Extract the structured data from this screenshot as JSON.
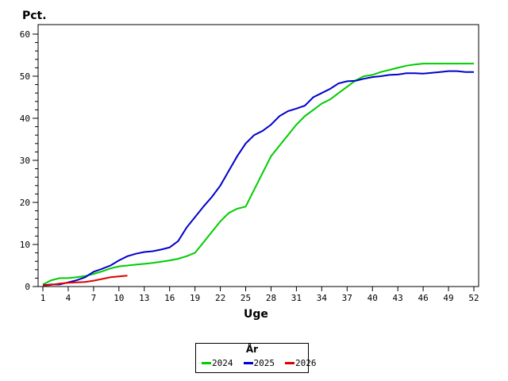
{
  "labels": {
    "y_axis_title": "Pct.",
    "x_axis_title": "Uge"
  },
  "chart_data": {
    "type": "line",
    "title": "",
    "ylabel": "Pct.",
    "xlabel": "Uge",
    "ylim": [
      0,
      60
    ],
    "xlim": [
      1,
      52
    ],
    "grid": "off",
    "y_tick_labels": [
      0,
      10,
      20,
      30,
      40,
      50,
      60
    ],
    "y_minor_step": 2,
    "x_tick_labels": [
      1,
      4,
      7,
      10,
      13,
      16,
      19,
      22,
      25,
      28,
      31,
      34,
      37,
      40,
      43,
      46,
      49,
      52
    ],
    "legend": {
      "title": "År",
      "position": "bottom-center",
      "entries": [
        "2024",
        "2025",
        "2026"
      ]
    },
    "series": [
      {
        "name": "2024",
        "color": "#00CC00",
        "start_week": 1,
        "values": [
          0.5,
          1.5,
          2,
          2,
          2.2,
          2.5,
          3,
          3.6,
          4.3,
          4.8,
          5,
          5.2,
          5.4,
          5.6,
          5.9,
          6.2,
          6.6,
          7.2,
          8,
          10.5,
          13,
          15.5,
          17.5,
          18.5,
          19,
          23,
          27,
          31,
          33.5,
          36,
          38.5,
          40.5,
          42,
          43.5,
          44.5,
          46,
          47.5,
          49,
          50,
          50.3,
          51,
          51.5,
          52,
          52.5,
          52.8,
          53,
          53,
          53,
          53,
          53,
          53,
          53
        ]
      },
      {
        "name": "2025",
        "color": "#0000CC",
        "start_week": 1,
        "values": [
          0.3,
          0.5,
          0.5,
          1,
          1.5,
          2.2,
          3.5,
          4.2,
          5,
          6.2,
          7.2,
          7.8,
          8.2,
          8.4,
          8.8,
          9.3,
          10.8,
          14,
          16.5,
          19,
          21.3,
          24,
          27.5,
          31,
          34,
          36,
          37,
          38.5,
          40.5,
          41.7,
          42.3,
          43,
          45,
          46,
          47,
          48.3,
          48.8,
          48.9,
          49.4,
          49.8,
          50,
          50.3,
          50.4,
          50.7,
          50.7,
          50.6,
          50.8,
          51,
          51.2,
          51.2,
          51,
          51
        ]
      },
      {
        "name": "2026",
        "color": "#DD0000",
        "start_week": 1,
        "values": [
          0.2,
          0.4,
          0.7,
          0.9,
          1,
          1.1,
          1.4,
          1.8,
          2.2,
          2.4,
          2.6
        ]
      }
    ]
  }
}
